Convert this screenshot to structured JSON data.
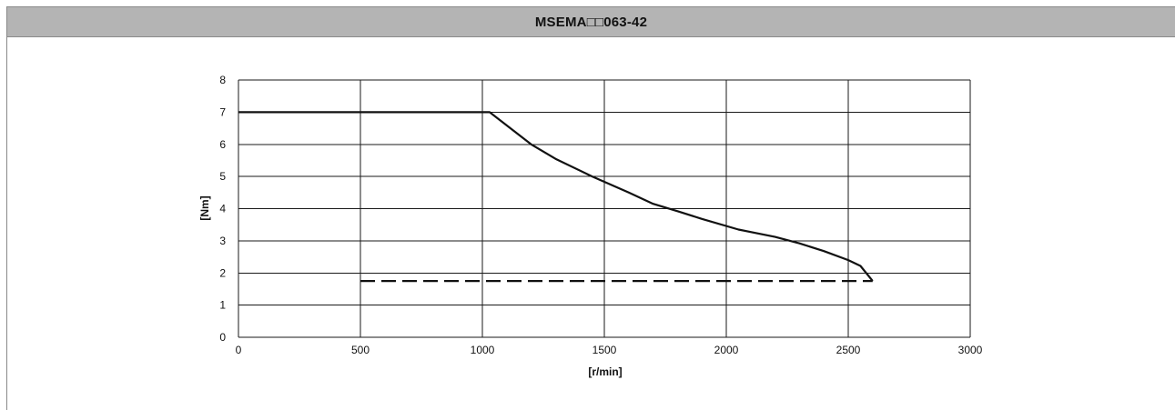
{
  "window": {
    "title": "MSEMA□□063-42"
  },
  "chart_data": {
    "type": "line",
    "title": "MSEMA□□063-42",
    "xlabel": "[r/min]",
    "ylabel": "[Nm]",
    "xlim": [
      0,
      3000
    ],
    "ylim": [
      0,
      8
    ],
    "xticks": [
      0,
      500,
      1000,
      1500,
      2000,
      2500,
      3000
    ],
    "yticks": [
      0,
      1,
      2,
      3,
      4,
      5,
      6,
      7,
      8
    ],
    "grid": true,
    "series": [
      {
        "style": "solid",
        "x": [
          0,
          1030,
          1200,
          1300,
          1450,
          1600,
          1700,
          1800,
          1900,
          2050,
          2200,
          2300,
          2400,
          2500,
          2550,
          2600
        ],
        "y": [
          7,
          7,
          6.0,
          5.55,
          5.0,
          4.5,
          4.15,
          3.92,
          3.68,
          3.35,
          3.12,
          2.92,
          2.68,
          2.4,
          2.22,
          1.75
        ]
      },
      {
        "style": "dashed",
        "x": [
          500,
          2600
        ],
        "y": [
          1.75,
          1.75
        ]
      }
    ],
    "colors": {
      "line": "#111111",
      "grid": "#1a1a1a",
      "title_bar": "#b4b4b4"
    }
  }
}
